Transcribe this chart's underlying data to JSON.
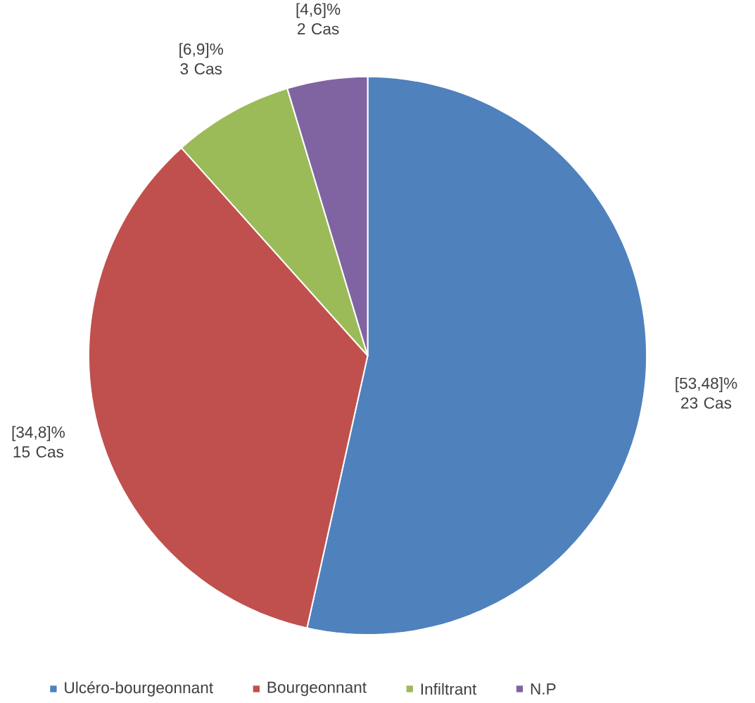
{
  "chart_data": {
    "type": "pie",
    "categories": [
      "Ulcéro-bourgeonnant",
      "Bourgeonnant",
      "Infiltrant",
      "N.P"
    ],
    "values": [
      23,
      15,
      3,
      2
    ],
    "colors": [
      "#4f81bd",
      "#c0504d",
      "#9bbb59",
      "#8064a2"
    ],
    "value_labels": [
      "[53,48]% 23 Cas",
      "[34,8]% 15 Cas",
      "[6,9]% 3 Cas",
      "[4,6]% 2 Cas"
    ],
    "legend": "bottom"
  }
}
